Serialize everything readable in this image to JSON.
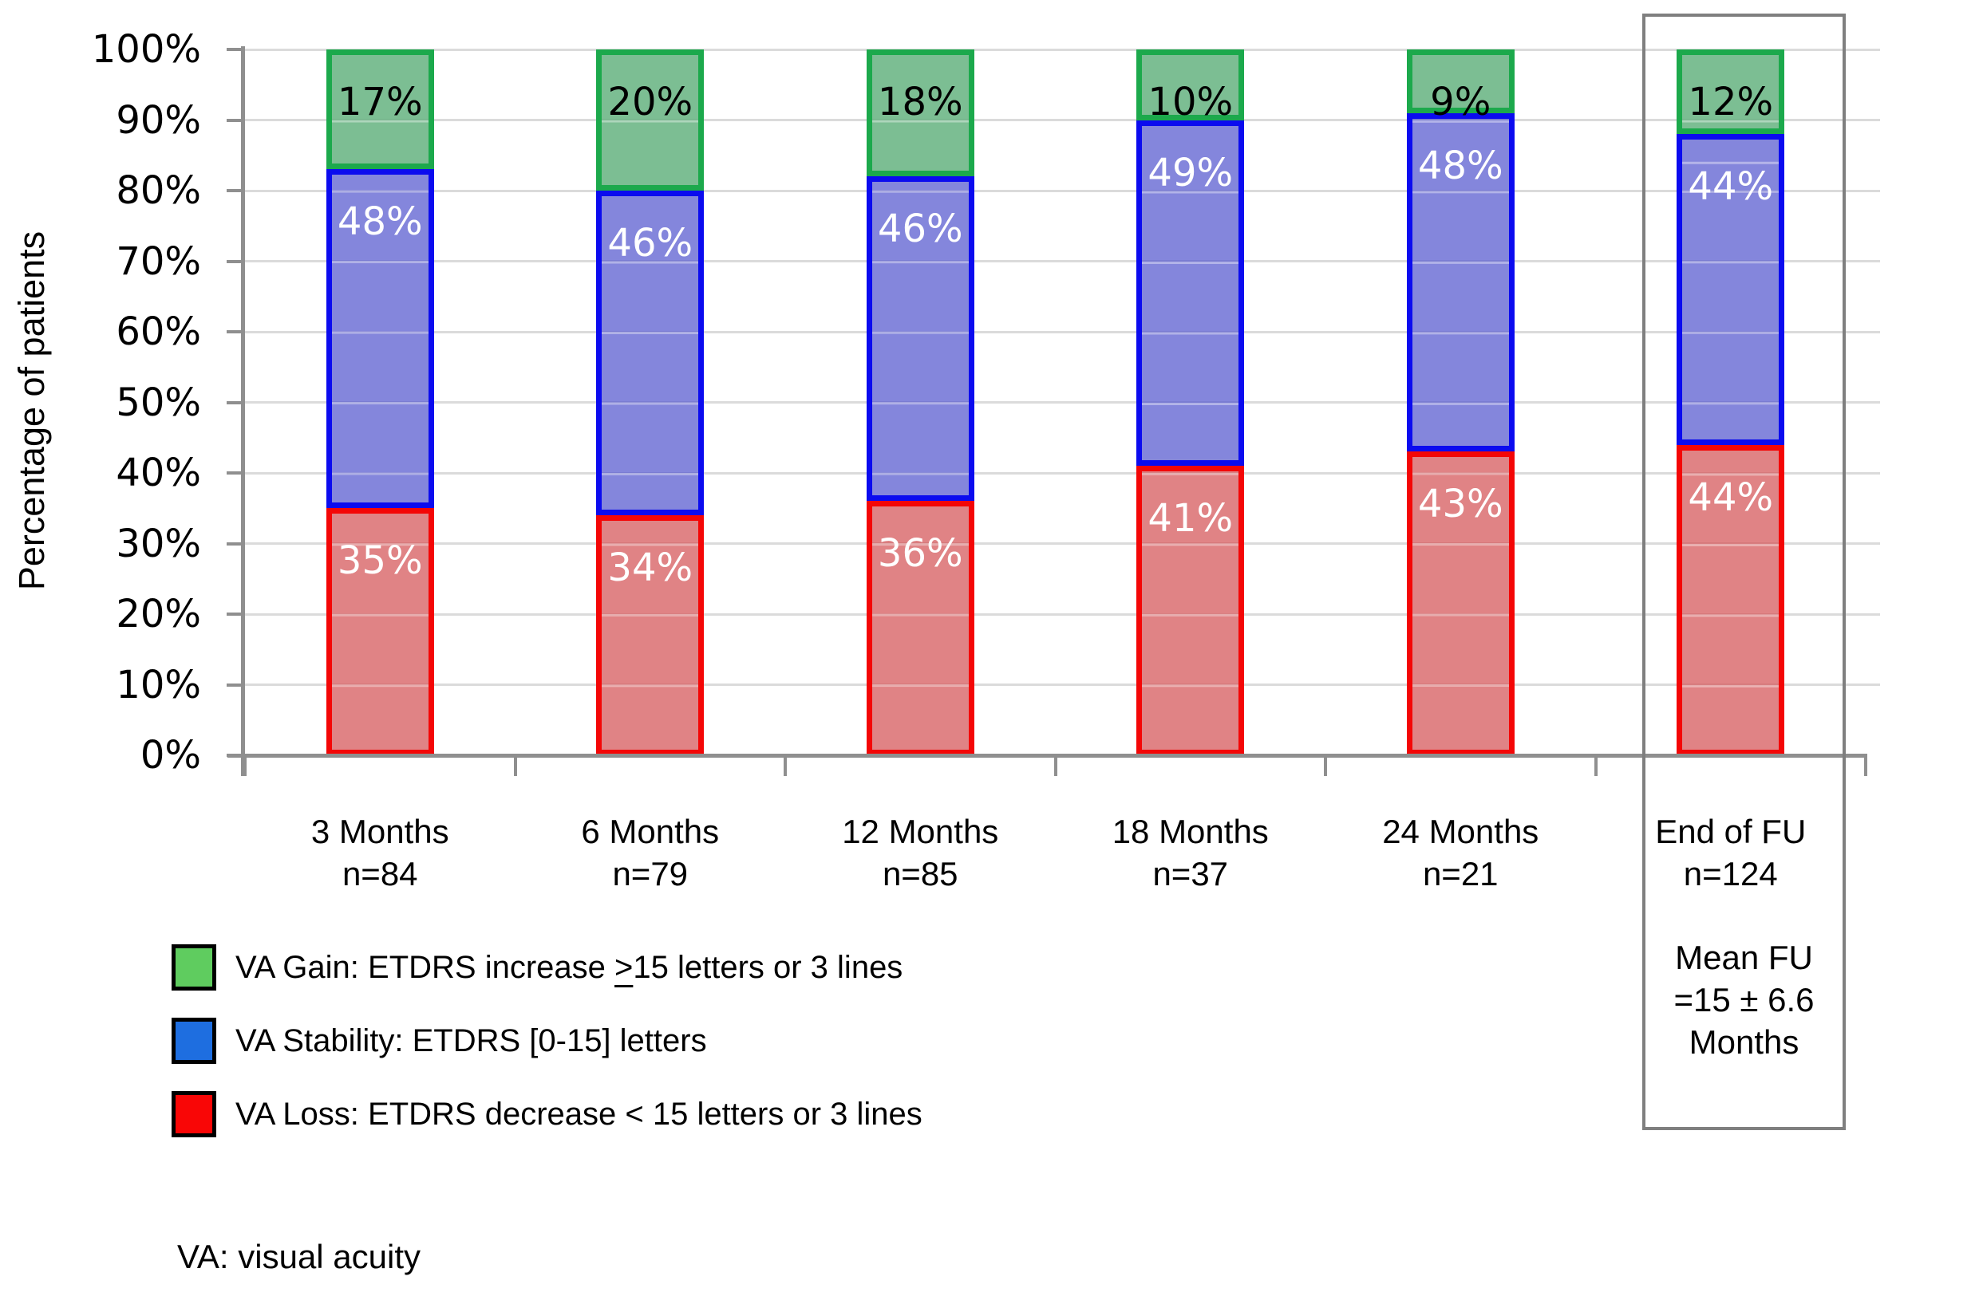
{
  "chart_data": {
    "type": "bar",
    "stacked": true,
    "ylabel": "Percentage of patients",
    "ylim": [
      0,
      100
    ],
    "ytick_step": 10,
    "ytick_suffix": "%",
    "grid": true,
    "data_labels": true,
    "categories": [
      "3 Months",
      "6 Months",
      "12 Months",
      "18 Months",
      "24 Months",
      "End of FU"
    ],
    "category_sublabels": [
      "n=84",
      "n=79",
      "n=85",
      "n=37",
      "n=21",
      "n=124"
    ],
    "series": [
      {
        "name": "VA Loss",
        "values": [
          35,
          34,
          36,
          41,
          43,
          44
        ],
        "border_color": "#f40606",
        "fill_color": "rgba(212,83,86,0.72)",
        "label_color": "#ffffff"
      },
      {
        "name": "VA Stability",
        "values": [
          48,
          46,
          46,
          49,
          48,
          44
        ],
        "border_color": "#0b0bef",
        "fill_color": "rgba(84,87,206,0.72)",
        "label_color": "#ffffff"
      },
      {
        "name": "VA Gain",
        "values": [
          17,
          20,
          18,
          10,
          9,
          12
        ],
        "border_color": "#1ca94c",
        "fill_color": "rgba(73,165,106,0.72)",
        "label_color": "#000000"
      }
    ],
    "legend_position": "bottom-left",
    "legend": {
      "items": [
        {
          "swatch_color": "#5fcc5f",
          "pre": "VA Gain: ETDRS increase ",
          "ge_symbol": ">",
          "post": "15 letters or 3 lines"
        },
        {
          "swatch_color": "#1e6ee0",
          "label": "VA Stability: ETDRS [0-15] letters"
        },
        {
          "swatch_color": "#f90606",
          "label": "VA Loss: ETDRS decrease < 15 letters or 3 lines"
        }
      ]
    },
    "annotation_box": {
      "category": "End of FU",
      "note_lines": [
        "Mean FU",
        "=15 ± 6.6",
        "Months"
      ]
    },
    "footnote": "VA: visual acuity"
  }
}
